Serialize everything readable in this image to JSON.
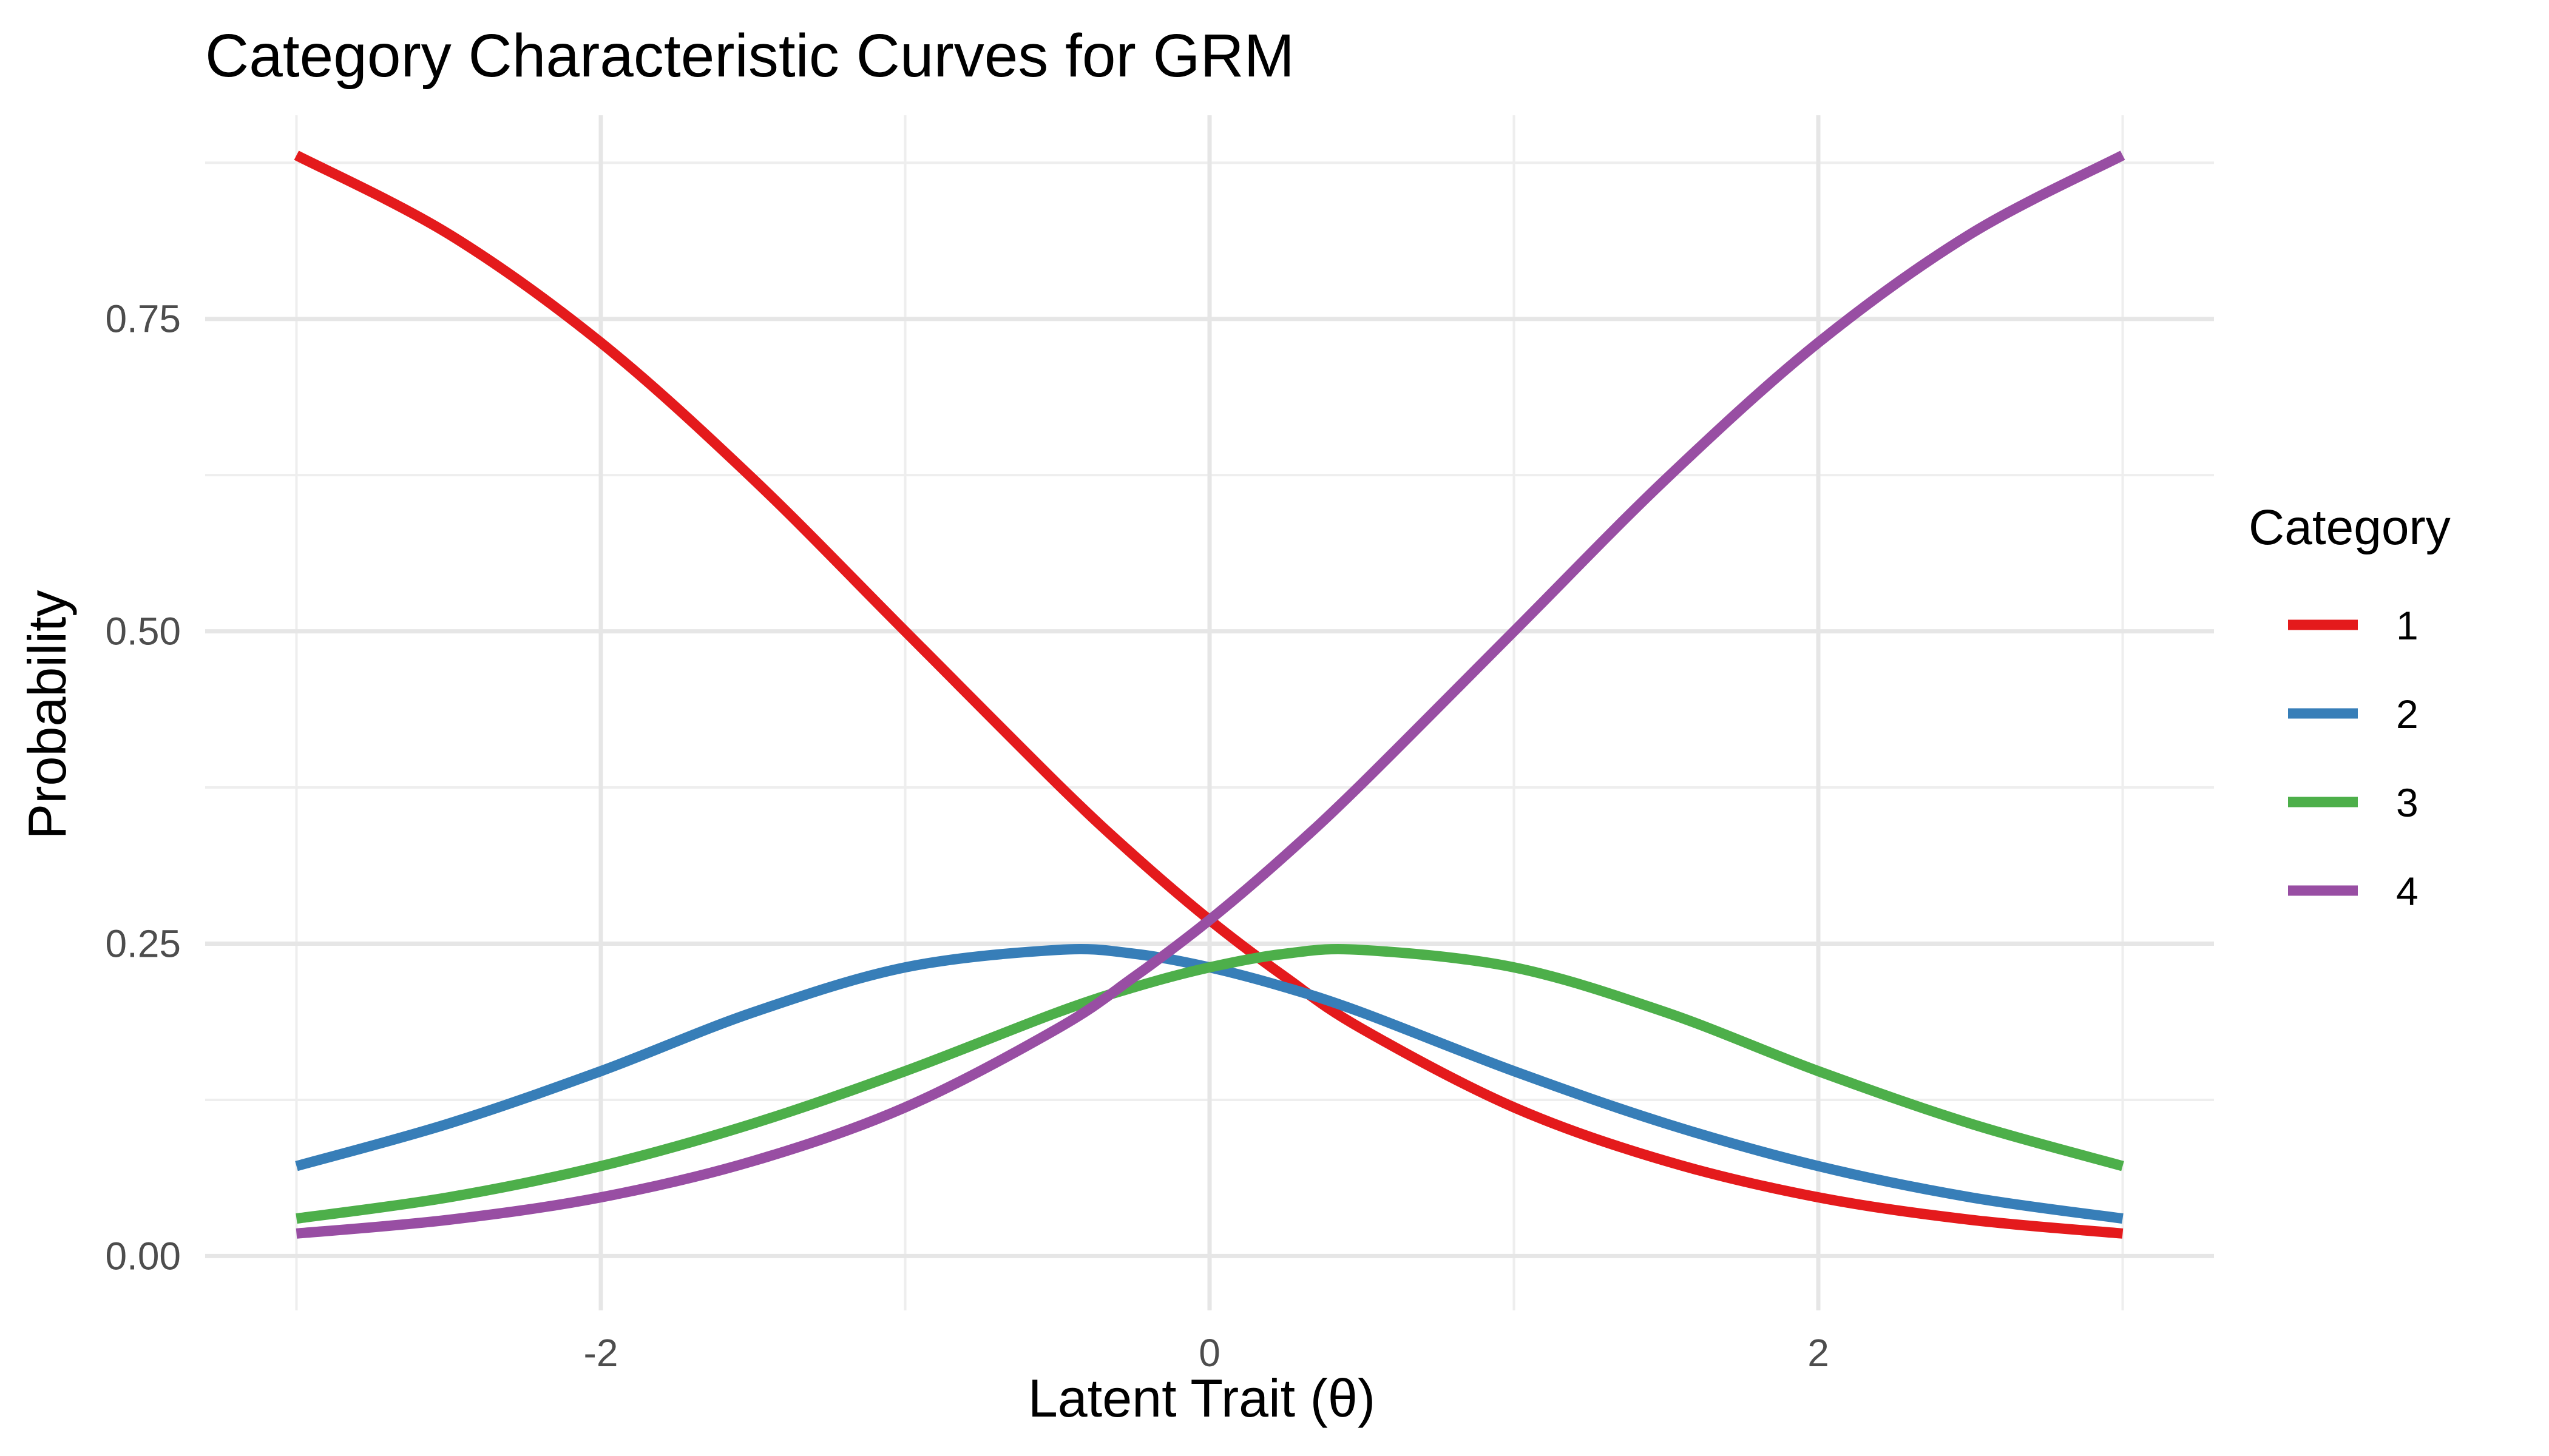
{
  "chart_data": {
    "type": "line",
    "title": "Category Characteristic Curves for GRM",
    "xlabel": "Latent Trait (θ)",
    "ylabel": "Probability",
    "xlim": [
      -3.3,
      3.3
    ],
    "ylim": [
      -0.0435,
      0.913
    ],
    "x_ticks": [
      -2,
      0,
      2
    ],
    "x_tick_labels": [
      "-2",
      "0",
      "2"
    ],
    "x_minor_ticks": [
      -3,
      -1,
      1,
      3
    ],
    "y_ticks": [
      0,
      0.25,
      0.5,
      0.75
    ],
    "y_tick_labels": [
      "0.00",
      "0.25",
      "0.50",
      "0.75"
    ],
    "y_minor_ticks": [
      0.125,
      0.375,
      0.625,
      0.875
    ],
    "grid": true,
    "legend": {
      "title": "Category",
      "position": "right"
    },
    "x": [
      -3,
      -2.5,
      -2,
      -1.5,
      -1,
      -0.5,
      -0.25,
      0,
      0.25,
      0.5,
      1,
      1.5,
      2,
      2.5,
      3
    ],
    "series": [
      {
        "name": "1",
        "color": "#E41A1C",
        "values": [
          0.881,
          0.818,
          0.731,
          0.622,
          0.5,
          0.378,
          0.321,
          0.269,
          0.223,
          0.182,
          0.119,
          0.076,
          0.047,
          0.029,
          0.018
        ]
      },
      {
        "name": "2",
        "color": "#377EB8",
        "values": [
          0.072,
          0.106,
          0.148,
          0.195,
          0.231,
          0.245,
          0.242,
          0.231,
          0.215,
          0.195,
          0.148,
          0.106,
          0.072,
          0.047,
          0.03
        ]
      },
      {
        "name": "3",
        "color": "#4DAF4A",
        "values": [
          0.03,
          0.047,
          0.072,
          0.106,
          0.148,
          0.195,
          0.215,
          0.231,
          0.242,
          0.245,
          0.231,
          0.195,
          0.148,
          0.106,
          0.072
        ]
      },
      {
        "name": "4",
        "color": "#984EA3",
        "values": [
          0.018,
          0.029,
          0.047,
          0.076,
          0.119,
          0.182,
          0.223,
          0.269,
          0.321,
          0.378,
          0.5,
          0.622,
          0.731,
          0.818,
          0.881
        ]
      }
    ]
  }
}
